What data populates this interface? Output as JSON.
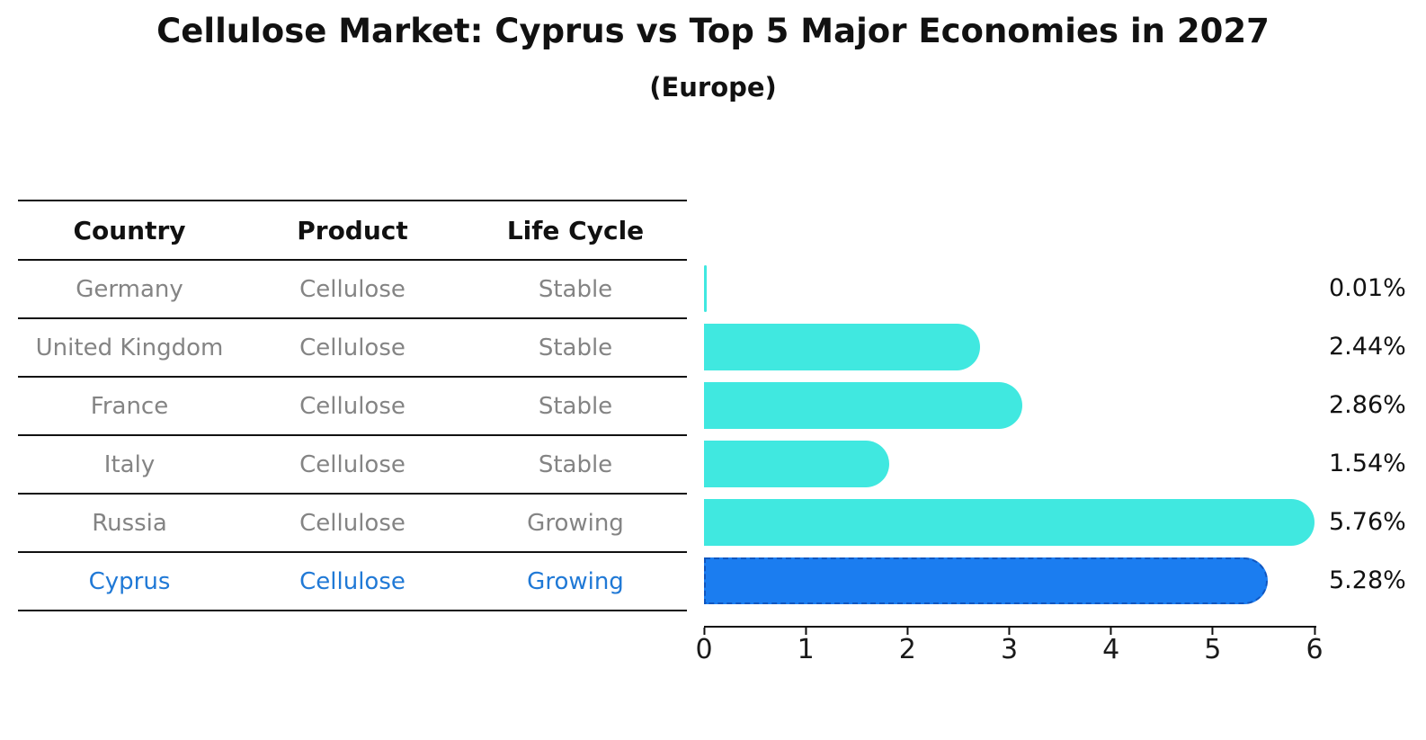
{
  "chart_data": {
    "type": "bar",
    "orientation": "horizontal",
    "title": "Cellulose Market: Cyprus vs Top 5 Major Economies in 2027",
    "subtitle": "(Europe)",
    "categories": [
      "Germany",
      "United Kingdom",
      "France",
      "Italy",
      "Russia",
      "Cyprus"
    ],
    "values": [
      0.01,
      2.44,
      2.86,
      1.54,
      5.76,
      5.28
    ],
    "value_labels": [
      "0.01%",
      "2.44%",
      "2.86%",
      "1.54%",
      "5.76%",
      "5.28%"
    ],
    "xlim": [
      0,
      6
    ],
    "x_ticks": [
      "0",
      "1",
      "2",
      "3",
      "4",
      "5",
      "6"
    ],
    "grid": false,
    "legend": "none",
    "highlight_index": 5,
    "colors": {
      "bar": "#40E8E0",
      "highlight_bar": "#1B7DF0",
      "highlight_border": "#1056C0",
      "highlight_text": "#2079D6",
      "table_text": "#848484",
      "header_text": "#111111",
      "line": "#111111"
    }
  },
  "table": {
    "headers": [
      "Country",
      "Product",
      "Life Cycle"
    ],
    "rows": [
      {
        "country": "Germany",
        "product": "Cellulose",
        "life_cycle": "Stable"
      },
      {
        "country": "United Kingdom",
        "product": "Cellulose",
        "life_cycle": "Stable"
      },
      {
        "country": "France",
        "product": "Cellulose",
        "life_cycle": "Stable"
      },
      {
        "country": "Italy",
        "product": "Cellulose",
        "life_cycle": "Stable"
      },
      {
        "country": "Russia",
        "product": "Cellulose",
        "life_cycle": "Growing"
      },
      {
        "country": "Cyprus",
        "product": "Cellulose",
        "life_cycle": "Growing"
      }
    ]
  }
}
